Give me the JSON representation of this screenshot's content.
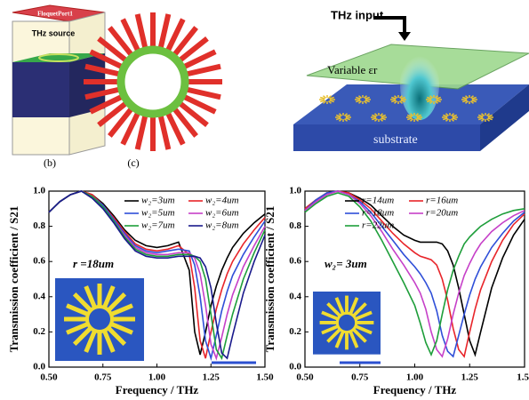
{
  "illustrations": {
    "port_label": "FloquetPort1",
    "source_label": "THz source",
    "panel_b": "(b)",
    "panel_c": "(c)",
    "input_label": "THz input",
    "variable_label": "Variable εr",
    "substrate_label": "substrate"
  },
  "chart_data": [
    {
      "type": "line",
      "x_label": "Frequency / THz",
      "y_label": "Transmission coefficient / S21",
      "annotations": [
        "r =18um"
      ],
      "x": [
        0.5,
        0.55,
        0.6,
        0.65,
        0.7,
        0.75,
        0.8,
        0.85,
        0.9,
        0.95,
        1.0,
        1.05,
        1.1,
        1.15,
        1.175,
        1.2,
        1.225,
        1.25,
        1.275,
        1.3,
        1.325,
        1.35,
        1.4,
        1.45,
        1.5
      ],
      "series": [
        {
          "name": "w₂=3um",
          "color": "#000000",
          "values": [
            0.88,
            0.94,
            0.98,
            1.0,
            0.98,
            0.93,
            0.86,
            0.78,
            0.72,
            0.69,
            0.68,
            0.69,
            0.71,
            0.55,
            0.2,
            0.07,
            0.2,
            0.35,
            0.46,
            0.55,
            0.62,
            0.68,
            0.76,
            0.82,
            0.87
          ]
        },
        {
          "name": "w₂=4um",
          "color": "#e8252a",
          "values": [
            0.88,
            0.94,
            0.98,
            1.0,
            0.98,
            0.92,
            0.85,
            0.77,
            0.7,
            0.67,
            0.66,
            0.67,
            0.69,
            0.64,
            0.45,
            0.15,
            0.05,
            0.2,
            0.33,
            0.44,
            0.53,
            0.6,
            0.7,
            0.78,
            0.85
          ]
        },
        {
          "name": "w₂=5um",
          "color": "#2f4fd8",
          "values": [
            0.88,
            0.94,
            0.98,
            1.0,
            0.97,
            0.92,
            0.84,
            0.76,
            0.69,
            0.66,
            0.65,
            0.66,
            0.67,
            0.66,
            0.58,
            0.4,
            0.15,
            0.05,
            0.18,
            0.32,
            0.43,
            0.52,
            0.64,
            0.74,
            0.83
          ]
        },
        {
          "name": "w₂=6um",
          "color": "#c640c8",
          "values": [
            0.88,
            0.94,
            0.98,
            1.0,
            0.97,
            0.91,
            0.83,
            0.75,
            0.68,
            0.65,
            0.64,
            0.64,
            0.65,
            0.65,
            0.62,
            0.53,
            0.35,
            0.13,
            0.05,
            0.17,
            0.3,
            0.41,
            0.57,
            0.69,
            0.8
          ]
        },
        {
          "name": "w₂=7um",
          "color": "#1e9e3a",
          "values": [
            0.88,
            0.94,
            0.98,
            1.0,
            0.97,
            0.91,
            0.83,
            0.74,
            0.67,
            0.64,
            0.63,
            0.63,
            0.64,
            0.64,
            0.63,
            0.6,
            0.5,
            0.3,
            0.1,
            0.05,
            0.18,
            0.3,
            0.5,
            0.65,
            0.78
          ]
        },
        {
          "name": "w₂=8um",
          "color": "#1a1a8c",
          "values": [
            0.88,
            0.94,
            0.98,
            1.0,
            0.96,
            0.9,
            0.82,
            0.73,
            0.66,
            0.63,
            0.62,
            0.62,
            0.63,
            0.63,
            0.63,
            0.62,
            0.57,
            0.45,
            0.25,
            0.08,
            0.05,
            0.18,
            0.42,
            0.6,
            0.75
          ]
        }
      ],
      "xlim": [
        0.5,
        1.5
      ],
      "ylim": [
        0,
        1
      ],
      "xticks": [
        {
          "value": 0.5,
          "label": "0.50"
        },
        {
          "value": 0.75,
          "label": "0.75"
        },
        {
          "value": 1.0,
          "label": "1.00"
        },
        {
          "value": 1.25,
          "label": "1.25"
        },
        {
          "value": 1.5,
          "label": "1.50"
        }
      ],
      "yticks": [
        {
          "value": 0,
          "label": "0.0"
        },
        0.2,
        0.4,
        0.6,
        0.8,
        {
          "value": 1,
          "label": "1.0"
        }
      ]
    },
    {
      "type": "line",
      "x_label": "Frequency / THz",
      "y_label": "Transmission coefficient / S21",
      "annotations": [
        "w₂= 3um"
      ],
      "x": [
        0.5,
        0.55,
        0.6,
        0.65,
        0.7,
        0.75,
        0.8,
        0.85,
        0.9,
        0.95,
        1.0,
        1.025,
        1.05,
        1.075,
        1.1,
        1.125,
        1.15,
        1.175,
        1.2,
        1.225,
        1.25,
        1.275,
        1.3,
        1.35,
        1.4,
        1.45,
        1.5
      ],
      "series": [
        {
          "name": "r=14um",
          "color": "#000000",
          "values": [
            0.9,
            0.95,
            0.99,
            1.0,
            0.99,
            0.96,
            0.92,
            0.86,
            0.8,
            0.75,
            0.72,
            0.71,
            0.71,
            0.71,
            0.71,
            0.7,
            0.66,
            0.58,
            0.45,
            0.3,
            0.15,
            0.07,
            0.2,
            0.45,
            0.62,
            0.75,
            0.84
          ]
        },
        {
          "name": "r=16um",
          "color": "#e8252a",
          "values": [
            0.9,
            0.95,
            0.99,
            1.0,
            0.99,
            0.95,
            0.9,
            0.83,
            0.76,
            0.7,
            0.65,
            0.63,
            0.62,
            0.61,
            0.58,
            0.5,
            0.38,
            0.22,
            0.1,
            0.06,
            0.2,
            0.33,
            0.44,
            0.6,
            0.72,
            0.81,
            0.87
          ]
        },
        {
          "name": "r=18um",
          "color": "#2f4fd8",
          "values": [
            0.89,
            0.95,
            0.99,
            1.0,
            0.98,
            0.94,
            0.88,
            0.8,
            0.72,
            0.64,
            0.57,
            0.53,
            0.48,
            0.42,
            0.32,
            0.18,
            0.09,
            0.06,
            0.18,
            0.3,
            0.41,
            0.5,
            0.57,
            0.68,
            0.76,
            0.83,
            0.88
          ]
        },
        {
          "name": "r=20um",
          "color": "#c640c8",
          "values": [
            0.89,
            0.94,
            0.98,
            1.0,
            0.98,
            0.93,
            0.86,
            0.77,
            0.67,
            0.58,
            0.48,
            0.42,
            0.33,
            0.2,
            0.1,
            0.06,
            0.16,
            0.3,
            0.42,
            0.52,
            0.59,
            0.65,
            0.7,
            0.77,
            0.82,
            0.86,
            0.89
          ]
        },
        {
          "name": "r=22um",
          "color": "#1e9e3a",
          "values": [
            0.88,
            0.93,
            0.97,
            0.99,
            0.97,
            0.91,
            0.83,
            0.72,
            0.6,
            0.48,
            0.35,
            0.25,
            0.14,
            0.07,
            0.15,
            0.3,
            0.44,
            0.55,
            0.63,
            0.7,
            0.74,
            0.77,
            0.8,
            0.84,
            0.87,
            0.89,
            0.9
          ]
        }
      ],
      "xlim": [
        0.5,
        1.5
      ],
      "ylim": [
        0,
        1
      ],
      "xticks": [
        {
          "value": 0.5,
          "label": "0.50"
        },
        {
          "value": 0.75,
          "label": "0.75"
        },
        {
          "value": 1.0,
          "label": "1.00"
        },
        {
          "value": 1.25,
          "label": "1.25"
        },
        {
          "value": 1.5,
          "label": "1.5"
        }
      ],
      "yticks": [
        {
          "value": 0,
          "label": "0.0"
        },
        0.2,
        0.4,
        0.6,
        0.8,
        {
          "value": 1,
          "label": "1.0"
        }
      ]
    }
  ]
}
